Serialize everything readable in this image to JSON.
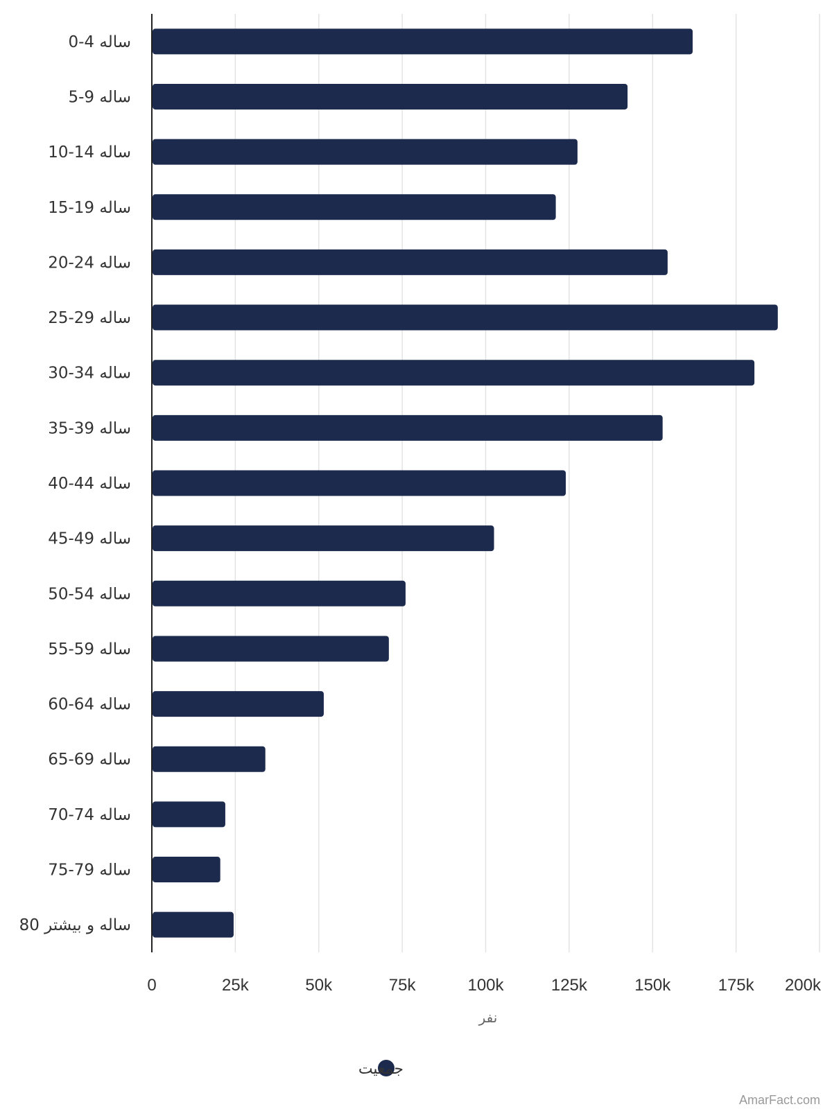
{
  "chart_data": {
    "type": "bar",
    "orientation": "horizontal",
    "categories": [
      "0-4 ساله",
      "5-9 ساله",
      "10-14 ساله",
      "15-19 ساله",
      "20-24 ساله",
      "25-29 ساله",
      "30-34 ساله",
      "35-39 ساله",
      "40-44 ساله",
      "45-49 ساله",
      "50-54 ساله",
      "55-59 ساله",
      "60-64 ساله",
      "65-69 ساله",
      "70-74 ساله",
      "75-79 ساله",
      "80 ساله و بیشتر"
    ],
    "series": [
      {
        "name": "جمعیت",
        "color": "#1c2a4d",
        "values": [
          162000,
          142500,
          127500,
          121000,
          154500,
          187500,
          180500,
          153000,
          124000,
          102500,
          76000,
          71000,
          51500,
          34000,
          22000,
          20500,
          24500
        ]
      }
    ],
    "xlabel": "نفر",
    "ylabel": "",
    "xlim": [
      0,
      200000
    ],
    "xticks": [
      0,
      25000,
      50000,
      75000,
      100000,
      125000,
      150000,
      175000,
      200000
    ],
    "xtick_labels": [
      "0",
      "25k",
      "50k",
      "75k",
      "100k",
      "125k",
      "150k",
      "175k",
      "200k"
    ],
    "grid": "vertical",
    "legend": {
      "position": "bottom-center",
      "entries": [
        "جمعیت"
      ]
    },
    "colors": {
      "bar": "#1c2a4d",
      "grid": "#e3e3e3",
      "axis": "#222222"
    }
  },
  "watermark": "AmarFact.com"
}
